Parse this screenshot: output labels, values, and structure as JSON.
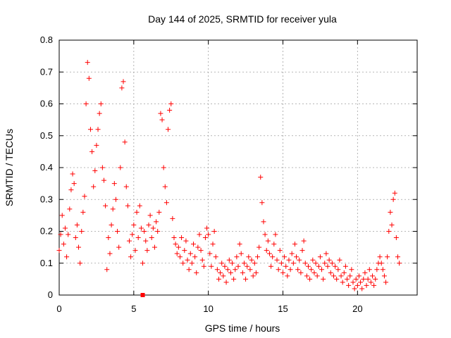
{
  "chart_data": {
    "type": "scatter",
    "title": "Day 144 of 2025, SRMTID for receiver yula",
    "xlabel": "GPS time / hours",
    "ylabel": "SRMTID / TECUs",
    "xlim": [
      0,
      24.0
    ],
    "ylim": [
      0,
      0.8
    ],
    "xticks": [
      0,
      5,
      10,
      15,
      20
    ],
    "xtick_labels": [
      "0",
      "5",
      "10",
      "15",
      "20"
    ],
    "yticks": [
      0,
      0.1,
      0.2,
      0.3,
      0.4,
      0.5,
      0.6,
      0.7,
      0.8
    ],
    "ytick_labels": [
      "0",
      "0.1",
      "0.2",
      "0.3",
      "0.4",
      "0.5",
      "0.6",
      "0.7",
      "0.8"
    ],
    "grid": true,
    "marker": "+",
    "color": "#ff0000",
    "outlier_square": {
      "x": 5.6,
      "y": 0.0
    },
    "series": [
      {
        "name": "SRMTID",
        "points": [
          [
            0.0,
            0.14
          ],
          [
            0.1,
            0.19
          ],
          [
            0.2,
            0.25
          ],
          [
            0.3,
            0.16
          ],
          [
            0.4,
            0.21
          ],
          [
            0.5,
            0.12
          ],
          [
            0.6,
            0.19
          ],
          [
            0.7,
            0.27
          ],
          [
            0.8,
            0.33
          ],
          [
            0.9,
            0.38
          ],
          [
            1.0,
            0.35
          ],
          [
            1.1,
            0.18
          ],
          [
            1.2,
            0.22
          ],
          [
            1.3,
            0.15
          ],
          [
            1.4,
            0.1
          ],
          [
            1.5,
            0.2
          ],
          [
            1.6,
            0.26
          ],
          [
            1.7,
            0.31
          ],
          [
            1.8,
            0.6
          ],
          [
            1.9,
            0.73
          ],
          [
            2.0,
            0.68
          ],
          [
            2.1,
            0.52
          ],
          [
            2.2,
            0.45
          ],
          [
            2.3,
            0.34
          ],
          [
            2.4,
            0.39
          ],
          [
            2.5,
            0.47
          ],
          [
            2.6,
            0.52
          ],
          [
            2.7,
            0.57
          ],
          [
            2.8,
            0.6
          ],
          [
            2.9,
            0.4
          ],
          [
            3.0,
            0.36
          ],
          [
            3.1,
            0.28
          ],
          [
            3.2,
            0.08
          ],
          [
            3.3,
            0.18
          ],
          [
            3.4,
            0.13
          ],
          [
            3.5,
            0.22
          ],
          [
            3.6,
            0.27
          ],
          [
            3.7,
            0.35
          ],
          [
            3.8,
            0.3
          ],
          [
            3.9,
            0.2
          ],
          [
            4.0,
            0.15
          ],
          [
            4.1,
            0.4
          ],
          [
            4.2,
            0.65
          ],
          [
            4.3,
            0.67
          ],
          [
            4.4,
            0.48
          ],
          [
            4.5,
            0.34
          ],
          [
            4.6,
            0.28
          ],
          [
            4.7,
            0.17
          ],
          [
            4.8,
            0.12
          ],
          [
            4.9,
            0.19
          ],
          [
            5.0,
            0.22
          ],
          [
            5.1,
            0.14
          ],
          [
            5.2,
            0.26
          ],
          [
            5.3,
            0.18
          ],
          [
            5.4,
            0.28
          ],
          [
            5.5,
            0.21
          ],
          [
            5.6,
            0.1
          ],
          [
            5.7,
            0.2
          ],
          [
            5.8,
            0.17
          ],
          [
            5.9,
            0.14
          ],
          [
            6.0,
            0.22
          ],
          [
            6.1,
            0.25
          ],
          [
            6.2,
            0.18
          ],
          [
            6.3,
            0.21
          ],
          [
            6.4,
            0.15
          ],
          [
            6.5,
            0.23
          ],
          [
            6.6,
            0.2
          ],
          [
            6.7,
            0.26
          ],
          [
            6.8,
            0.57
          ],
          [
            6.9,
            0.55
          ],
          [
            7.0,
            0.4
          ],
          [
            7.1,
            0.34
          ],
          [
            7.2,
            0.29
          ],
          [
            7.3,
            0.52
          ],
          [
            7.4,
            0.58
          ],
          [
            7.5,
            0.6
          ],
          [
            7.6,
            0.24
          ],
          [
            7.7,
            0.18
          ],
          [
            7.8,
            0.16
          ],
          [
            7.9,
            0.13
          ],
          [
            8.0,
            0.15
          ],
          [
            8.1,
            0.12
          ],
          [
            8.2,
            0.18
          ],
          [
            8.3,
            0.1
          ],
          [
            8.4,
            0.14
          ],
          [
            8.5,
            0.17
          ],
          [
            8.6,
            0.11
          ],
          [
            8.7,
            0.08
          ],
          [
            8.8,
            0.13
          ],
          [
            8.9,
            0.1
          ],
          [
            9.0,
            0.16
          ],
          [
            9.1,
            0.12
          ],
          [
            9.2,
            0.07
          ],
          [
            9.3,
            0.15
          ],
          [
            9.4,
            0.19
          ],
          [
            9.5,
            0.14
          ],
          [
            9.6,
            0.11
          ],
          [
            9.7,
            0.09
          ],
          [
            9.8,
            0.18
          ],
          [
            9.9,
            0.21
          ],
          [
            10.0,
            0.19
          ],
          [
            10.1,
            0.13
          ],
          [
            10.2,
            0.09
          ],
          [
            10.3,
            0.16
          ],
          [
            10.4,
            0.2
          ],
          [
            10.5,
            0.12
          ],
          [
            10.6,
            0.08
          ],
          [
            10.7,
            0.05
          ],
          [
            10.8,
            0.07
          ],
          [
            10.9,
            0.1
          ],
          [
            11.0,
            0.06
          ],
          [
            11.1,
            0.09
          ],
          [
            11.2,
            0.04
          ],
          [
            11.3,
            0.08
          ],
          [
            11.4,
            0.11
          ],
          [
            11.5,
            0.07
          ],
          [
            11.6,
            0.1
          ],
          [
            11.7,
            0.05
          ],
          [
            11.8,
            0.08
          ],
          [
            11.9,
            0.12
          ],
          [
            12.0,
            0.09
          ],
          [
            12.1,
            0.16
          ],
          [
            12.2,
            0.13
          ],
          [
            12.3,
            0.07
          ],
          [
            12.4,
            0.1
          ],
          [
            12.5,
            0.05
          ],
          [
            12.6,
            0.09
          ],
          [
            12.7,
            0.12
          ],
          [
            12.8,
            0.08
          ],
          [
            12.9,
            0.11
          ],
          [
            13.0,
            0.06
          ],
          [
            13.1,
            0.1
          ],
          [
            13.2,
            0.07
          ],
          [
            13.3,
            0.12
          ],
          [
            13.4,
            0.15
          ],
          [
            13.5,
            0.37
          ],
          [
            13.6,
            0.29
          ],
          [
            13.7,
            0.23
          ],
          [
            13.8,
            0.19
          ],
          [
            13.9,
            0.14
          ],
          [
            14.0,
            0.17
          ],
          [
            14.1,
            0.13
          ],
          [
            14.2,
            0.09
          ],
          [
            14.3,
            0.12
          ],
          [
            14.4,
            0.16
          ],
          [
            14.5,
            0.19
          ],
          [
            14.6,
            0.11
          ],
          [
            14.7,
            0.08
          ],
          [
            14.8,
            0.14
          ],
          [
            14.9,
            0.1
          ],
          [
            15.0,
            0.07
          ],
          [
            15.1,
            0.12
          ],
          [
            15.2,
            0.09
          ],
          [
            15.3,
            0.06
          ],
          [
            15.4,
            0.11
          ],
          [
            15.5,
            0.08
          ],
          [
            15.6,
            0.13
          ],
          [
            15.7,
            0.1
          ],
          [
            15.8,
            0.16
          ],
          [
            15.9,
            0.12
          ],
          [
            16.0,
            0.08
          ],
          [
            16.1,
            0.11
          ],
          [
            16.2,
            0.07
          ],
          [
            16.3,
            0.14
          ],
          [
            16.4,
            0.17
          ],
          [
            16.5,
            0.1
          ],
          [
            16.6,
            0.06
          ],
          [
            16.7,
            0.09
          ],
          [
            16.8,
            0.05
          ],
          [
            16.9,
            0.08
          ],
          [
            17.0,
            0.11
          ],
          [
            17.1,
            0.07
          ],
          [
            17.2,
            0.1
          ],
          [
            17.3,
            0.06
          ],
          [
            17.4,
            0.09
          ],
          [
            17.5,
            0.12
          ],
          [
            17.6,
            0.08
          ],
          [
            17.7,
            0.05
          ],
          [
            17.8,
            0.1
          ],
          [
            17.9,
            0.13
          ],
          [
            18.0,
            0.09
          ],
          [
            18.1,
            0.11
          ],
          [
            18.2,
            0.07
          ],
          [
            18.3,
            0.1
          ],
          [
            18.4,
            0.06
          ],
          [
            18.5,
            0.09
          ],
          [
            18.6,
            0.05
          ],
          [
            18.7,
            0.08
          ],
          [
            18.8,
            0.11
          ],
          [
            18.9,
            0.06
          ],
          [
            19.0,
            0.04
          ],
          [
            19.1,
            0.07
          ],
          [
            19.2,
            0.09
          ],
          [
            19.3,
            0.05
          ],
          [
            19.4,
            0.03
          ],
          [
            19.5,
            0.06
          ],
          [
            19.6,
            0.08
          ],
          [
            19.7,
            0.04
          ],
          [
            19.8,
            0.02
          ],
          [
            19.9,
            0.05
          ],
          [
            20.0,
            0.03
          ],
          [
            20.1,
            0.06
          ],
          [
            20.2,
            0.04
          ],
          [
            20.3,
            0.02
          ],
          [
            20.4,
            0.05
          ],
          [
            20.5,
            0.07
          ],
          [
            20.6,
            0.03
          ],
          [
            20.7,
            0.05
          ],
          [
            20.8,
            0.08
          ],
          [
            20.9,
            0.04
          ],
          [
            21.0,
            0.06
          ],
          [
            21.1,
            0.03
          ],
          [
            21.2,
            0.05
          ],
          [
            21.3,
            0.08
          ],
          [
            21.4,
            0.1
          ],
          [
            21.5,
            0.12
          ],
          [
            21.6,
            0.1
          ],
          [
            21.7,
            0.08
          ],
          [
            21.8,
            0.06
          ],
          [
            21.9,
            0.04
          ],
          [
            22.0,
            0.12
          ],
          [
            22.1,
            0.2
          ],
          [
            22.2,
            0.26
          ],
          [
            22.3,
            0.22
          ],
          [
            22.4,
            0.3
          ],
          [
            22.5,
            0.32
          ],
          [
            22.6,
            0.18
          ],
          [
            22.7,
            0.12
          ],
          [
            22.8,
            0.1
          ]
        ]
      }
    ]
  }
}
